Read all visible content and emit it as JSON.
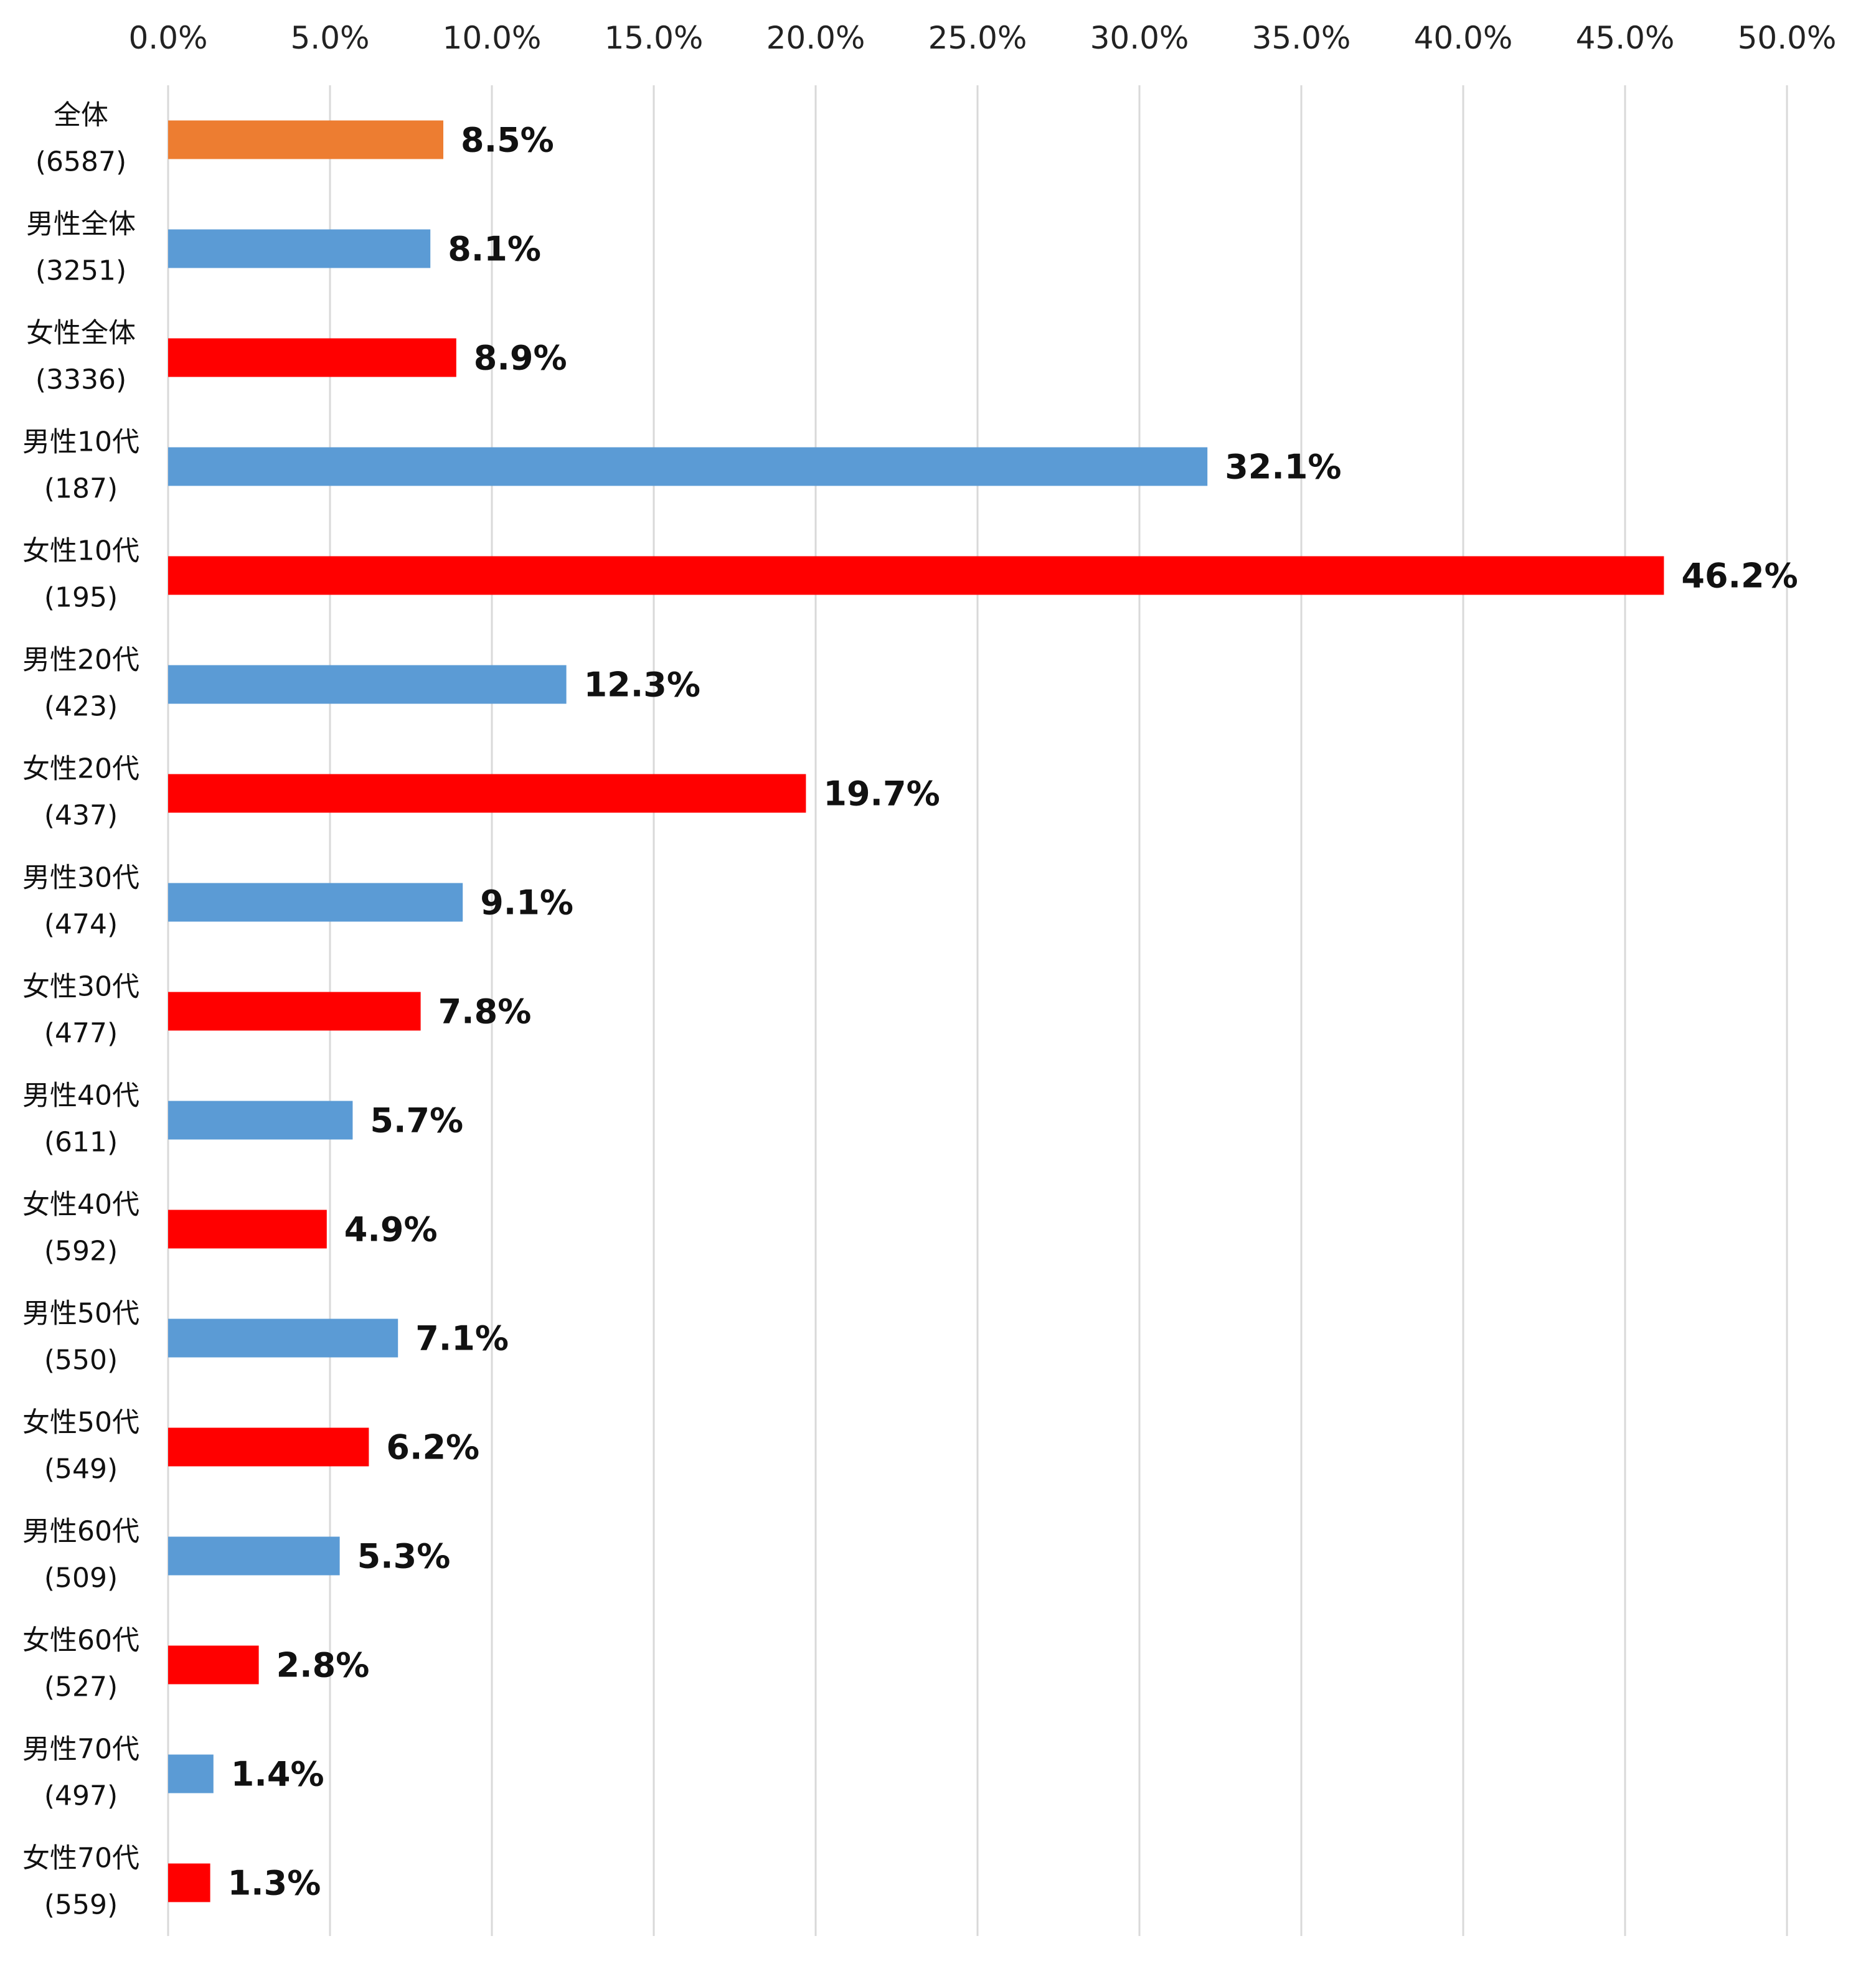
{
  "chart_data": {
    "type": "bar",
    "orientation": "horizontal",
    "title": "",
    "xlabel": "",
    "ylabel": "",
    "xlim": [
      0,
      50
    ],
    "x_tick_step": 5,
    "x_tick_format": "percent_1dp",
    "x_axis_position": "top",
    "grid": true,
    "legend": "none",
    "categories": [
      {
        "name": "全体",
        "n": "(6587)"
      },
      {
        "name": "男性全体",
        "n": "(3251)"
      },
      {
        "name": "女性全体",
        "n": "(3336)"
      },
      {
        "name": "男性10代",
        "n": "(187)"
      },
      {
        "name": "女性10代",
        "n": "(195)"
      },
      {
        "name": "男性20代",
        "n": "(423)"
      },
      {
        "name": "女性20代",
        "n": "(437)"
      },
      {
        "name": "男性30代",
        "n": "(474)"
      },
      {
        "name": "女性30代",
        "n": "(477)"
      },
      {
        "name": "男性40代",
        "n": "(611)"
      },
      {
        "name": "女性40代",
        "n": "(592)"
      },
      {
        "name": "男性50代",
        "n": "(550)"
      },
      {
        "name": "女性50代",
        "n": "(549)"
      },
      {
        "name": "男性60代",
        "n": "(509)"
      },
      {
        "name": "女性60代",
        "n": "(527)"
      },
      {
        "name": "男性70代",
        "n": "(497)"
      },
      {
        "name": "女性70代",
        "n": "(559)"
      }
    ],
    "values": [
      8.5,
      8.1,
      8.9,
      32.1,
      46.2,
      12.3,
      19.7,
      9.1,
      7.8,
      5.7,
      4.9,
      7.1,
      6.2,
      5.3,
      2.8,
      1.4,
      1.3
    ],
    "bar_groups": [
      "total",
      "male",
      "female",
      "male",
      "female",
      "male",
      "female",
      "male",
      "female",
      "male",
      "female",
      "male",
      "female",
      "male",
      "female",
      "male",
      "female"
    ],
    "colors": {
      "total": "#ED7D31",
      "male": "#5B9BD5",
      "female": "#FF0000",
      "grid": "#D9D9D9"
    }
  }
}
